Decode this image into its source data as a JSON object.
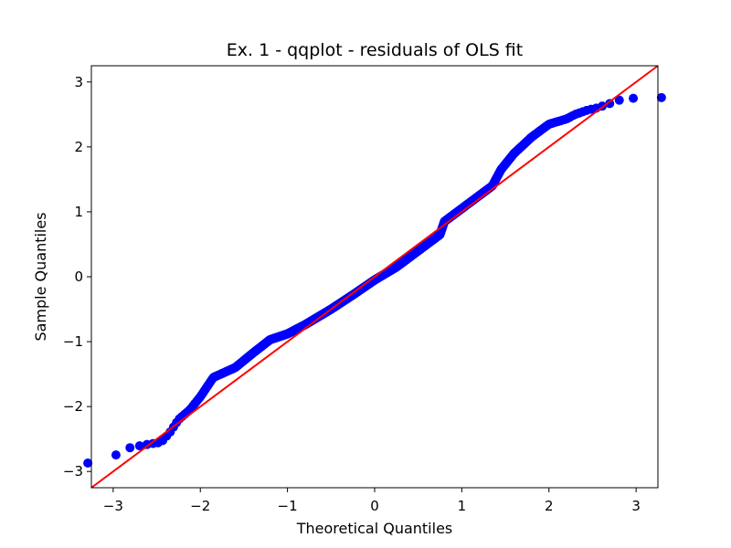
{
  "chart_data": {
    "type": "scatter",
    "title": "Ex. 1 - qqplot - residuals of OLS fit",
    "xlabel": "Theoretical Quantiles",
    "ylabel": "Sample Quantiles",
    "xlim": [
      -3.25,
      3.25
    ],
    "ylim": [
      -3.25,
      3.25
    ],
    "xticks": [
      -3,
      -2,
      -1,
      0,
      1,
      2,
      3
    ],
    "yticks": [
      -3,
      -2,
      -1,
      0,
      1,
      2,
      3
    ],
    "xtick_labels": [
      "−3",
      "−2",
      "−1",
      "0",
      "1",
      "2",
      "3"
    ],
    "ytick_labels": [
      "−3",
      "−2",
      "−1",
      "0",
      "1",
      "2",
      "3"
    ],
    "grid": false,
    "legend": "none",
    "point_color": "#0000ff",
    "reference_line": {
      "slope": 1,
      "intercept": 0,
      "color": "#ff0000"
    },
    "anchors": [
      [
        -3.13,
        -2.87
      ],
      [
        -2.83,
        -2.64
      ],
      [
        -2.68,
        -2.6
      ],
      [
        -2.55,
        -2.57
      ],
      [
        -2.45,
        -2.55
      ],
      [
        -2.35,
        -2.4
      ],
      [
        -2.25,
        -2.2
      ],
      [
        -2.12,
        -2.05
      ],
      [
        -2.0,
        -1.85
      ],
      [
        -1.85,
        -1.55
      ],
      [
        -1.6,
        -1.4
      ],
      [
        -1.4,
        -1.18
      ],
      [
        -1.2,
        -0.97
      ],
      [
        -1.0,
        -0.88
      ],
      [
        -0.8,
        -0.74
      ],
      [
        -0.5,
        -0.5
      ],
      [
        -0.25,
        -0.28
      ],
      [
        0.0,
        -0.05
      ],
      [
        0.25,
        0.15
      ],
      [
        0.5,
        0.4
      ],
      [
        0.75,
        0.65
      ],
      [
        0.8,
        0.85
      ],
      [
        1.0,
        1.05
      ],
      [
        1.2,
        1.25
      ],
      [
        1.35,
        1.4
      ],
      [
        1.45,
        1.65
      ],
      [
        1.6,
        1.9
      ],
      [
        1.8,
        2.15
      ],
      [
        2.0,
        2.35
      ],
      [
        2.2,
        2.43
      ],
      [
        2.3,
        2.5
      ],
      [
        2.45,
        2.57
      ],
      [
        2.55,
        2.6
      ],
      [
        2.68,
        2.66
      ],
      [
        2.85,
        2.74
      ],
      [
        3.13,
        2.76
      ]
    ]
  }
}
